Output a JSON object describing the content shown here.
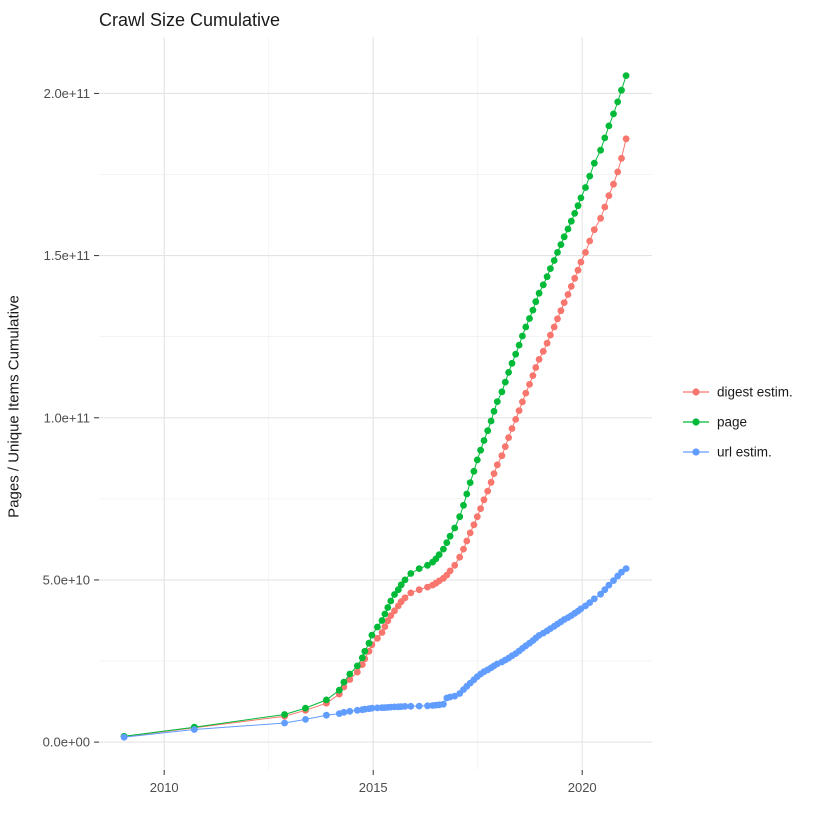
{
  "page": {
    "title": "Crawl Size Cumulative"
  },
  "chart_data": {
    "type": "line",
    "title": "Crawl Size Cumulative",
    "xlabel": "",
    "ylabel": "Pages / Unique Items Cumulative",
    "value_unit": "1e9 (values below are billions; axis shows scientific notation)",
    "legend_position": "right",
    "grid": true,
    "marker": "point",
    "xlim": [
      2008.44,
      2021.67
    ],
    "ylim": [
      -8.6,
      217.4
    ],
    "x_ticks": {
      "major": [
        2010,
        2015,
        2020
      ],
      "labels": [
        "2010",
        "2015",
        "2020"
      ],
      "minor": [
        2012.5,
        2017.5
      ]
    },
    "y_ticks": {
      "major": [
        0,
        50,
        100,
        150,
        200
      ],
      "labels": [
        "0.0e+00",
        "5.0e+10",
        "1.0e+11",
        "1.5e+11",
        "2.0e+11"
      ],
      "minor": [
        25,
        75,
        125,
        175
      ]
    },
    "x": [
      2009.04,
      2010.72,
      2012.88,
      2013.38,
      2013.88,
      2014.19,
      2014.3,
      2014.44,
      2014.62,
      2014.74,
      2014.8,
      2014.9,
      2014.97,
      2015.1,
      2015.21,
      2015.28,
      2015.35,
      2015.42,
      2015.51,
      2015.6,
      2015.67,
      2015.76,
      2015.9,
      2016.1,
      2016.3,
      2016.42,
      2016.5,
      2016.58,
      2016.68,
      2016.76,
      2016.84,
      2016.95,
      2017.07,
      2017.16,
      2017.24,
      2017.32,
      2017.41,
      2017.49,
      2017.57,
      2017.65,
      2017.74,
      2017.82,
      2017.89,
      2017.97,
      2018.08,
      2018.16,
      2018.24,
      2018.32,
      2018.41,
      2018.49,
      2018.57,
      2018.65,
      2018.74,
      2018.82,
      2018.89,
      2018.97,
      2019.07,
      2019.16,
      2019.24,
      2019.33,
      2019.41,
      2019.49,
      2019.57,
      2019.66,
      2019.74,
      2019.82,
      2019.9,
      2019.97,
      2020.08,
      2020.18,
      2020.29,
      2020.44,
      2020.54,
      2020.64,
      2020.75,
      2020.85,
      2020.94,
      2021.05
    ],
    "series": [
      {
        "name": "digest estim.",
        "color": "#F8766D",
        "values": [
          1.7,
          4.4,
          8.0,
          9.8,
          12.0,
          14.8,
          17.0,
          19.3,
          21.6,
          23.9,
          25.7,
          28.0,
          30.0,
          32.0,
          33.8,
          35.6,
          37.4,
          39.0,
          40.5,
          42.0,
          43.3,
          44.5,
          46.0,
          47.0,
          47.8,
          48.4,
          49.0,
          49.7,
          50.5,
          51.5,
          52.8,
          54.5,
          57.0,
          59.5,
          62.0,
          64.5,
          67.0,
          69.5,
          72.0,
          74.7,
          77.4,
          80.1,
          82.8,
          85.5,
          88.3,
          91.1,
          93.9,
          96.7,
          99.5,
          102.2,
          104.9,
          107.6,
          110.3,
          113.0,
          115.5,
          118.0,
          120.5,
          123.0,
          125.5,
          128.0,
          130.5,
          133.0,
          135.5,
          138.0,
          140.5,
          143.0,
          145.5,
          148.0,
          151.0,
          154.5,
          158.0,
          161.5,
          165.0,
          168.5,
          172.0,
          175.8,
          180.0,
          186.0
        ]
      },
      {
        "name": "page",
        "color": "#00BA38",
        "values": [
          1.8,
          4.6,
          8.5,
          10.5,
          13.0,
          16.0,
          18.5,
          21.0,
          23.5,
          26.0,
          28.0,
          30.5,
          33.0,
          35.5,
          37.5,
          39.5,
          41.5,
          43.5,
          45.5,
          47.0,
          48.5,
          50.0,
          52.0,
          53.5,
          54.5,
          55.5,
          56.5,
          57.8,
          59.5,
          61.5,
          63.5,
          66.0,
          69.5,
          73.0,
          76.5,
          80.0,
          83.5,
          87.0,
          90.0,
          93.0,
          96.0,
          99.0,
          102.0,
          105.0,
          108.0,
          111.0,
          114.0,
          116.8,
          119.6,
          122.4,
          125.2,
          128.0,
          130.6,
          133.2,
          135.8,
          138.4,
          141.0,
          143.5,
          146.0,
          148.5,
          151.0,
          153.4,
          155.8,
          158.2,
          160.6,
          163.0,
          165.4,
          167.8,
          171.0,
          174.5,
          178.5,
          182.5,
          186.3,
          190.0,
          193.7,
          197.4,
          201.0,
          205.5
        ]
      },
      {
        "name": "url estim.",
        "color": "#619CFF",
        "values": [
          1.5,
          3.9,
          5.9,
          7.0,
          8.3,
          8.8,
          9.2,
          9.5,
          9.8,
          10.0,
          10.15,
          10.3,
          10.45,
          10.55,
          10.6,
          10.65,
          10.7,
          10.78,
          10.85,
          10.9,
          10.95,
          11.0,
          11.05,
          11.1,
          11.2,
          11.3,
          11.4,
          11.5,
          11.7,
          13.6,
          13.9,
          14.2,
          15.0,
          16.2,
          17.2,
          18.2,
          19.2,
          20.2,
          21.0,
          21.7,
          22.3,
          22.9,
          23.5,
          24.1,
          24.7,
          25.3,
          25.9,
          26.6,
          27.3,
          28.1,
          28.9,
          29.7,
          30.5,
          31.3,
          32.1,
          32.9,
          33.6,
          34.3,
          35.0,
          35.7,
          36.4,
          37.1,
          37.8,
          38.4,
          39.0,
          39.7,
          40.4,
          41.1,
          42.0,
          43.0,
          44.2,
          45.6,
          47.0,
          48.4,
          49.8,
          51.2,
          52.4,
          53.5
        ]
      }
    ],
    "colors": {
      "grid_major": "#E4E4E4",
      "grid_minor": "#F1F1F1",
      "tick_mark": "#333333",
      "tick_label": "#4D4D4D",
      "text": "#1A1A1A",
      "background": "#FFFFFF"
    }
  }
}
